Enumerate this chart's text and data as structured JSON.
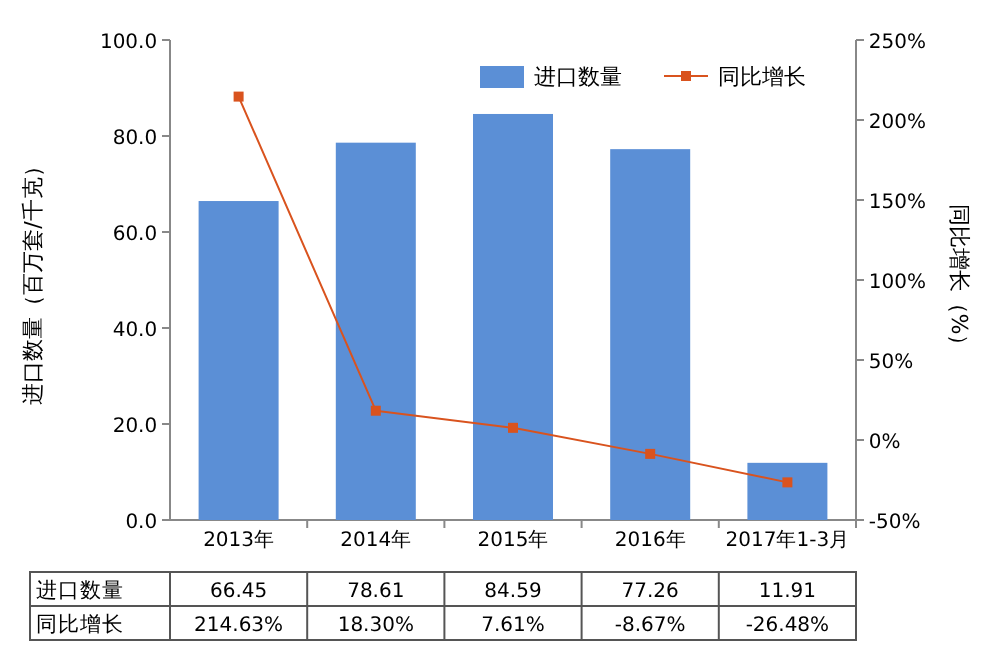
{
  "chart_data": {
    "type": "bar",
    "categories": [
      "2013年",
      "2014年",
      "2015年",
      "2016年",
      "2017年1-3月"
    ],
    "ylabel": "进口数量（百万套/千克）",
    "y2label": "同比增长（%）",
    "series": [
      {
        "name": "进口数量",
        "color": "#5b8fd6",
        "values": [
          66.45,
          78.61,
          84.59,
          77.26,
          11.91
        ],
        "value_labels": [
          "66.45",
          "78.61",
          "84.59",
          "77.26",
          "11.91"
        ]
      },
      {
        "name": "同比增长",
        "type": "line",
        "axis": "y2",
        "color": "#d9531e",
        "marker": "square",
        "values": [
          214.63,
          18.3,
          7.61,
          -8.67,
          -26.48
        ],
        "value_labels": [
          "214.63%",
          "18.30%",
          "7.61%",
          "-8.67%",
          "-26.48%"
        ]
      }
    ],
    "ylim": [
      0,
      100
    ],
    "yticks": [
      {
        "value": 0,
        "label": "0.0"
      },
      {
        "value": 20,
        "label": "20.0"
      },
      {
        "value": 40,
        "label": "40.0"
      },
      {
        "value": 60,
        "label": "60.0"
      },
      {
        "value": 80,
        "label": "80.0"
      },
      {
        "value": 100,
        "label": "100.0"
      }
    ],
    "y2lim": [
      -50,
      250
    ],
    "y2ticks": [
      {
        "value": -50,
        "label": "-50%"
      },
      {
        "value": 0,
        "label": "0%"
      },
      {
        "value": 50,
        "label": "50%"
      },
      {
        "value": 100,
        "label": "100%"
      },
      {
        "value": 150,
        "label": "150%"
      },
      {
        "value": 200,
        "label": "200%"
      },
      {
        "value": 250,
        "label": "250%"
      }
    ],
    "legend": "top right",
    "grid": false
  }
}
